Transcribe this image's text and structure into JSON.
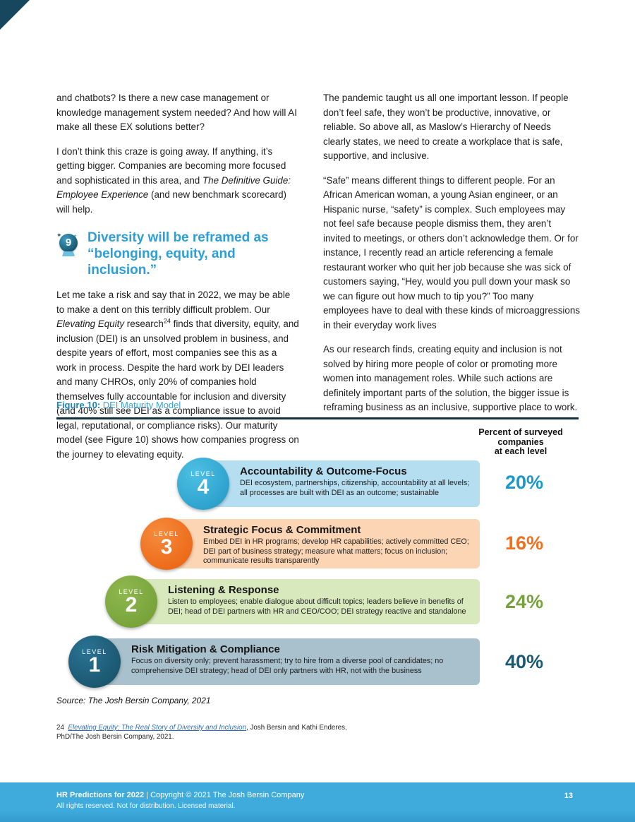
{
  "columns": {
    "left": {
      "p1": "and chatbots? Is there a new case management or knowledge management system needed? And how will AI make all these EX solutions better?",
      "p2_pre": "I don’t think this craze is going away. If anything, it’s getting bigger. Companies are becoming more focused and sophisticated in this area, and ",
      "p2_italic": "The Definitive Guide: Employee Experience",
      "p2_post": " (and new benchmark scorecard) will help.",
      "p3_pre": "Let me take a risk and say that in 2022, we may be able to make a dent on this terribly difficult problem. Our ",
      "p3_italic": "Elevating Equity",
      "p3_mid": " research",
      "p3_sup": "24",
      "p3_post": " finds that diversity, equity, and inclusion (DEI) is an unsolved problem in business, and despite years of effort, most companies see this as a work in process. Despite the hard work by DEI leaders and many CHROs, only 20% of companies hold themselves fully accountable for inclusion and diversity (and 40% still see DEI as a compliance issue to avoid legal, reputational, or compliance risks). Our maturity model (see Figure 10) shows how companies progress on the journey to elevating equity."
    },
    "right": {
      "p1": "The pandemic taught us all one important lesson. If people don’t feel safe, they won’t be productive, innovative, or reliable. So above all, as Maslow’s Hierarchy of Needs clearly states, we need to create a workplace that is safe, supportive, and inclusive.",
      "p2": "“Safe” means different things to different people. For an African American woman, a young Asian engineer, or an Hispanic nurse, “safety” is complex. Such employees may not feel safe because people dismiss them, they aren’t invited to meetings, or others don’t acknowledge them. Or for instance, I recently read an article referencing a female restaurant worker who quit her job because she was sick of customers saying, “Hey, would you pull down your mask so we can figure out how much to tip you?” Too many employees have to deal with these kinds of microaggressions in their everyday work lives",
      "p3": "As our research finds, creating equity and inclusion is not solved by hiring more people of color or promoting more women into management roles. While such actions are definitely important parts of the solution, the bigger issue is reframing business as an inclusive, supportive place to work."
    }
  },
  "section9": {
    "number": "9",
    "spark1": "✦",
    "spark2": "✦",
    "title_line1": "Diversity will be reframed as",
    "title_line2": "“belonging, equity, and inclusion.”"
  },
  "figure": {
    "caption_label": "Figure 10:",
    "caption_title": " DEI Maturity Model",
    "axis_header": "Percent of surveyed\ncompanies\nat each level",
    "levels": [
      {
        "label": "LEVEL",
        "number": "4",
        "title": "Accountability & Outcome-Focus",
        "description": "DEI ecosystem, partnerships, citizenship, accountability at all levels; all processes are built with DEI as an outcome; sustainable",
        "percent": "20%",
        "accent": "#2ba7d0"
      },
      {
        "label": "LEVEL",
        "number": "3",
        "title": "Strategic Focus & Commitment",
        "description": "Embed DEI in HR programs; develop HR capabilities; actively committed CEO; DEI part of business strategy; measure what matters; focus on inclusion; communicate results transparently",
        "percent": "16%",
        "accent": "#f26f1d"
      },
      {
        "label": "LEVEL",
        "number": "2",
        "title": "Listening & Response",
        "description": "Listen to employees; enable dialogue about difficult topics; leaders believe in benefits of DEI; head of DEI partners with HR and CEO/COO; DEI strategy reactive and standalone",
        "percent": "24%",
        "accent": "#76a23c"
      },
      {
        "label": "LEVEL",
        "number": "1",
        "title": "Risk Mitigation & Compliance",
        "description": "Focus on diversity only; prevent harassment; try to hire from a diverse pool of candidates; no comprehensive DEI strategy; head of DEI only partners with HR, not with the business",
        "percent": "40%",
        "accent": "#1d5f7a"
      }
    ],
    "source": "Source: The Josh Bersin Company, 2021"
  },
  "footnote": {
    "num": "24",
    "link": "Elevating Equity: The Real Story of Diversity and Inclusion",
    "rest": ", Josh Bersin and Kathi Enderes,",
    "line2": "PhD/The Josh Bersin Company, 2021."
  },
  "footer": {
    "title": "HR Predictions for 2022",
    "sep": " | ",
    "copyright": " Copyright  © 2021 The Josh Bersin Company",
    "line2": "All rights reserved. Not for distribution. Licensed material.",
    "page_number": "13"
  }
}
